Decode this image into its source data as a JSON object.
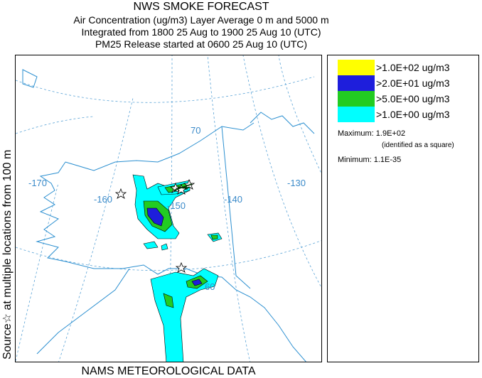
{
  "header": {
    "title": "NWS SMOKE FORECAST",
    "line2": "Air Concentration (ug/m3) Layer Average    0 m and  5000 m",
    "line3": "Integrated from 1800 25 Aug to 1900 25 Aug 10 (UTC)",
    "line4": "PM25 Release started at 0600 25 Aug 10 (UTC)"
  },
  "side_label": "Source☆  at multiple locations   from   100 m",
  "footer": "NAMS METEOROLOGICAL DATA",
  "map": {
    "lon_labels": [
      "-170",
      "-160",
      "-150",
      "-140",
      "-130"
    ],
    "lat_labels": [
      "70",
      "60"
    ],
    "colors": {
      "coast": "#2b8fd0",
      "grid": "#5aa3d6"
    }
  },
  "legend": {
    "items": [
      {
        "label": ">1.0E+02 ug/m3",
        "color": "#ffff00"
      },
      {
        "label": ">2.0E+01 ug/m3",
        "color": "#1e1edc"
      },
      {
        "label": ">5.0E+00 ug/m3",
        "color": "#22cc22"
      },
      {
        "label": ">1.0E+00 ug/m3",
        "color": "#00ffff"
      }
    ],
    "maximum_label": "Maximum:",
    "maximum_value": "1.9E+02",
    "maximum_note": "(identified as a square)",
    "minimum_label": "Minimum:",
    "minimum_value": "1.1E-35"
  }
}
